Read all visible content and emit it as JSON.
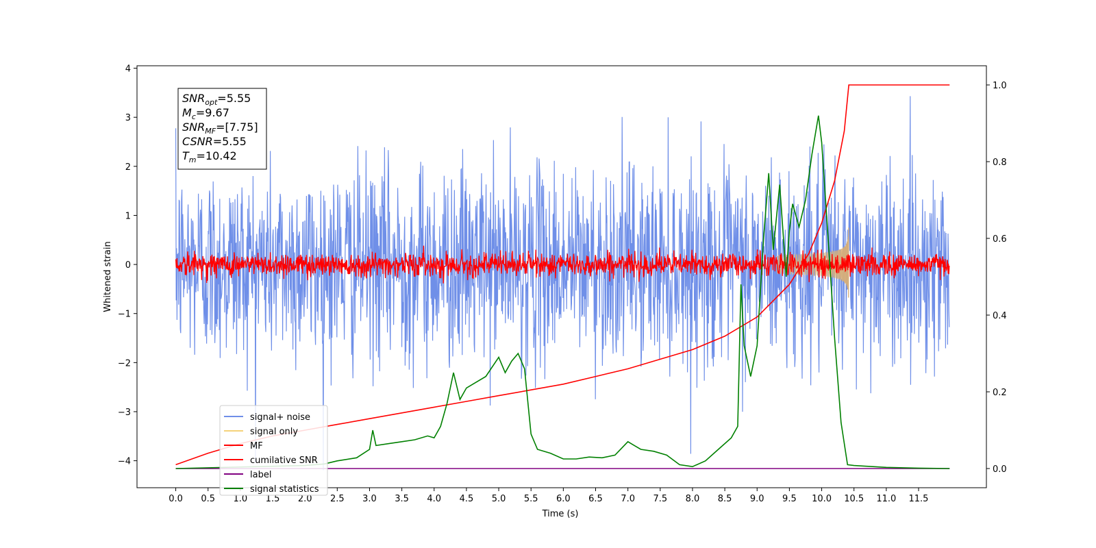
{
  "chart_data": {
    "type": "line",
    "xlabel": "Time (s)",
    "ylabel": "Whitened strain",
    "xlim": [
      -0.6,
      12.55
    ],
    "ylim_left": [
      -4.55,
      4.05
    ],
    "ylim_right": [
      -0.05,
      1.05
    ],
    "x_ticks": [
      "0.0",
      "0.5",
      "1.0",
      "1.5",
      "2.0",
      "2.5",
      "3.0",
      "3.5",
      "4.0",
      "4.5",
      "5.0",
      "5.5",
      "6.0",
      "6.5",
      "7.0",
      "7.5",
      "8.0",
      "8.5",
      "9.0",
      "9.5",
      "10.0",
      "10.5",
      "11.0",
      "11.5"
    ],
    "y_ticks_left": [
      "4",
      "3",
      "2",
      "1",
      "0",
      "−1",
      "−2",
      "−3",
      "−4"
    ],
    "y_ticks_right": [
      "1.0",
      "0.8",
      "0.6",
      "0.4",
      "0.2",
      "0.0"
    ],
    "grid": false,
    "legend_placement": "lower-left",
    "info_box": {
      "lines": [
        {
          "base": "SNR",
          "sub": "opt",
          "value": "=5.55"
        },
        {
          "base": "M",
          "sub": "c",
          "value": "=9.67"
        },
        {
          "base": "SNR",
          "sub": "MF",
          "value": "=[7.75]"
        },
        {
          "base": "CSNR",
          "sub": "",
          "value": "=5.55"
        },
        {
          "base": "T",
          "sub": "m",
          "value": "=10.42"
        }
      ]
    },
    "series": [
      {
        "name": "signal+ noise",
        "color": "#6f8fe8",
        "axis": "left",
        "kind": "noise",
        "x_range": [
          0,
          11.98
        ],
        "amplitude": 1.0
      },
      {
        "name": "signal only",
        "color": "#f5d27a",
        "axis": "left",
        "kind": "chirp",
        "x_range": [
          9.3,
          10.42
        ],
        "peak": 0.8
      },
      {
        "name": "MF",
        "color": "#ff0000",
        "axis": "left",
        "kind": "noise",
        "x_range": [
          0,
          11.98
        ],
        "amplitude": 0.12
      },
      {
        "name": "cumilative SNR",
        "color": "#ff0000",
        "axis": "right",
        "kind": "line",
        "x": [
          0,
          0.5,
          1,
          1.5,
          2,
          2.5,
          3,
          3.5,
          4,
          4.5,
          5,
          5.5,
          6,
          6.5,
          7,
          7.5,
          8,
          8.5,
          9,
          9.5,
          9.8,
          10.0,
          10.2,
          10.35,
          10.42,
          11.98
        ],
        "y": [
          0.01,
          0.04,
          0.065,
          0.085,
          0.1,
          0.115,
          0.13,
          0.145,
          0.16,
          0.175,
          0.19,
          0.205,
          0.22,
          0.24,
          0.26,
          0.285,
          0.31,
          0.345,
          0.395,
          0.48,
          0.56,
          0.64,
          0.75,
          0.88,
          1.0,
          1.0
        ]
      },
      {
        "name": "label",
        "color": "#800080",
        "axis": "right",
        "kind": "line",
        "x": [
          0,
          11.98
        ],
        "y": [
          0.0,
          0.0
        ]
      },
      {
        "name": "signal statistics",
        "color": "#008000",
        "axis": "right",
        "kind": "line",
        "x": [
          0,
          0.5,
          1,
          1.5,
          2,
          2.3,
          2.5,
          2.8,
          3.0,
          3.05,
          3.1,
          3.3,
          3.5,
          3.7,
          3.9,
          4.0,
          4.1,
          4.2,
          4.3,
          4.4,
          4.5,
          4.6,
          4.8,
          5.0,
          5.1,
          5.2,
          5.3,
          5.4,
          5.5,
          5.6,
          5.8,
          6.0,
          6.2,
          6.4,
          6.6,
          6.8,
          7.0,
          7.1,
          7.2,
          7.4,
          7.6,
          7.8,
          8.0,
          8.2,
          8.4,
          8.6,
          8.7,
          8.75,
          8.8,
          8.9,
          9.0,
          9.1,
          9.18,
          9.25,
          9.35,
          9.45,
          9.5,
          9.55,
          9.65,
          9.75,
          9.85,
          9.95,
          10.0,
          10.1,
          10.2,
          10.3,
          10.4,
          10.5,
          10.7,
          11.0,
          11.5,
          11.98
        ],
        "y": [
          0.0,
          0.002,
          0.004,
          0.006,
          0.008,
          0.012,
          0.02,
          0.028,
          0.05,
          0.1,
          0.06,
          0.065,
          0.07,
          0.075,
          0.085,
          0.08,
          0.11,
          0.17,
          0.25,
          0.18,
          0.21,
          0.22,
          0.24,
          0.29,
          0.25,
          0.28,
          0.3,
          0.26,
          0.09,
          0.05,
          0.04,
          0.025,
          0.025,
          0.03,
          0.028,
          0.035,
          0.07,
          0.06,
          0.05,
          0.045,
          0.035,
          0.01,
          0.005,
          0.02,
          0.05,
          0.08,
          0.11,
          0.48,
          0.32,
          0.24,
          0.32,
          0.6,
          0.77,
          0.57,
          0.74,
          0.5,
          0.62,
          0.69,
          0.63,
          0.7,
          0.82,
          0.92,
          0.85,
          0.6,
          0.34,
          0.12,
          0.01,
          0.008,
          0.006,
          0.003,
          0.001,
          0.0
        ]
      }
    ]
  }
}
